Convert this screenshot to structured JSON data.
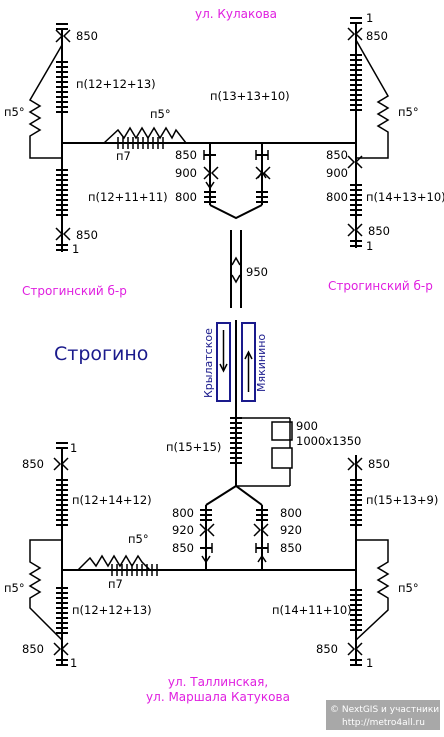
{
  "colors": {
    "line": "#000000",
    "street": "#e020e0",
    "station": "#1a1a8c",
    "watermark": "#ffffff",
    "watermark_bg": "#a8a8a8"
  },
  "top": {
    "street": "ул. Кулакова",
    "left_boulevard": "Строгинский б-р",
    "right_boulevard": "Строгинский б-р",
    "mid_formula": "п(13+13+10)",
    "left_upper_formula": "п(12+12+13)",
    "left_lower_formula": "п(12+11+11)",
    "right_lower_formula": "п(14+13+10)",
    "left_slope": "п5°",
    "right_slope": "п5°",
    "top_slope": "п5°",
    "p7": "п7",
    "left_top_850": "850",
    "left_bottom_850": "850",
    "left_bottom_1": "1",
    "right_top_1": "1",
    "right_top_850": "850",
    "right_850_a": "850",
    "right_900": "900",
    "right_800": "800",
    "right_850_b": "850",
    "right_bottom_1": "1",
    "center_850": "850",
    "center_900": "900",
    "center_800": "800",
    "tunnel_950": "950"
  },
  "station": {
    "name": "Строгино",
    "left_platform": "Крылатское",
    "right_platform": "Мякинино"
  },
  "bottom": {
    "street_line1": "ул. Таллинская,",
    "street_line2": "ул. Маршала Катукова",
    "formula_15": "п(15+15)",
    "box_900": "900",
    "box_size": "1000х1350",
    "left_upper_formula": "п(12+14+12)",
    "left_lower_formula": "п(12+12+13)",
    "right_upper_formula": "п(15+13+9)",
    "right_lower_formula": "п(14+11+10)",
    "left_slope": "п5°",
    "right_slope": "п5°",
    "mid_slope": "п5°",
    "p7": "п7",
    "left_top_1": "1",
    "left_top_850": "850",
    "left_bottom_850": "850",
    "left_bottom_1": "1",
    "right_top_850": "850",
    "right_bottom_850": "850",
    "right_bottom_1": "1",
    "c_left_800": "800",
    "c_left_920": "920",
    "c_left_850": "850",
    "c_right_800": "800",
    "c_right_920": "920",
    "c_right_850": "850"
  },
  "watermark": {
    "line1": "© NextGIS и участники",
    "line2": "http://metro4all.ru"
  }
}
